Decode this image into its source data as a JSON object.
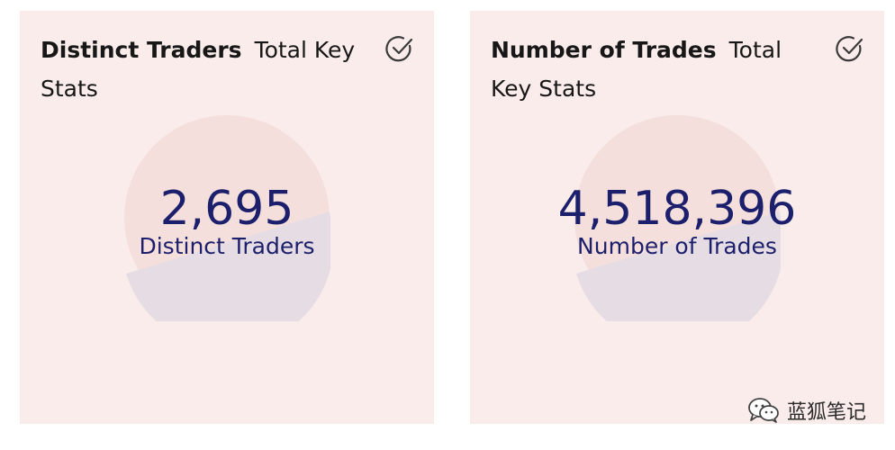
{
  "cards": [
    {
      "title": "Distinct Traders",
      "subtitle": "Total Key Stats",
      "value": "2,695",
      "label": "Distinct Traders"
    },
    {
      "title": "Number of Trades",
      "subtitle": "Total Key Stats",
      "value": "4,518,396",
      "label": "Number of Trades"
    }
  ],
  "colors": {
    "card_bg": "#f9ecea",
    "slice_top": "#f5dfdc",
    "slice_bottom": "#e6dde4",
    "value_text": "#1c1f6b"
  },
  "watermark": {
    "icon": "wechat-icon",
    "text": "蓝狐笔记"
  }
}
